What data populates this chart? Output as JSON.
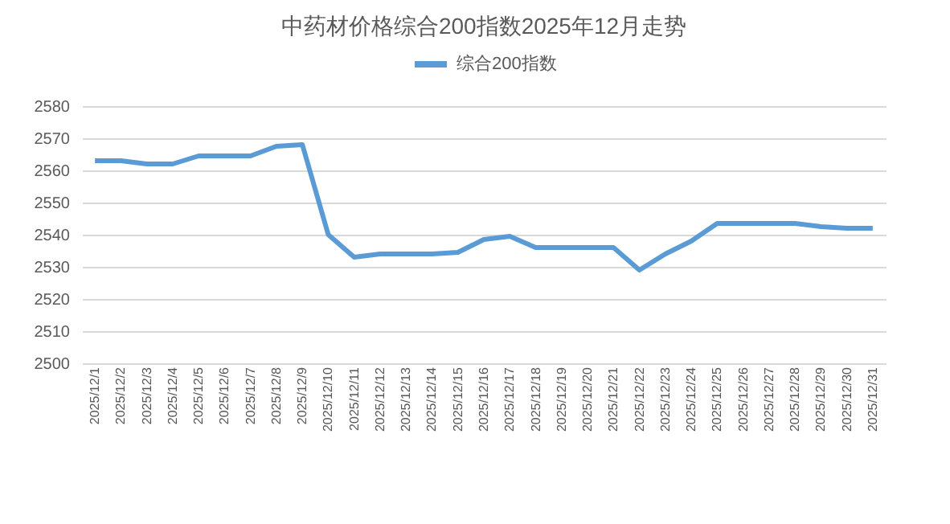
{
  "chart_data": {
    "type": "line",
    "title": "中药材价格综合200指数2025年12月走势",
    "categories": [
      "2025/12/1",
      "2025/12/2",
      "2025/12/3",
      "2025/12/4",
      "2025/12/5",
      "2025/12/6",
      "2025/12/7",
      "2025/12/8",
      "2025/12/9",
      "2025/12/10",
      "2025/12/11",
      "2025/12/12",
      "2025/12/13",
      "2025/12/14",
      "2025/12/15",
      "2025/12/16",
      "2025/12/17",
      "2025/12/18",
      "2025/12/19",
      "2025/12/20",
      "2025/12/21",
      "2025/12/22",
      "2025/12/23",
      "2025/12/24",
      "2025/12/25",
      "2025/12/26",
      "2025/12/27",
      "2025/12/28",
      "2025/12/29",
      "2025/12/30",
      "2025/12/31"
    ],
    "series": [
      {
        "name": "综合200指数",
        "color": "#5b9bd5",
        "values": [
          2563,
          2563,
          2562,
          2562,
          2564.5,
          2564.5,
          2564.5,
          2567.5,
          2568,
          2540,
          2533,
          2534,
          2534,
          2534,
          2534.5,
          2538.5,
          2539.5,
          2536,
          2536,
          2536,
          2536,
          2529,
          2534,
          2538,
          2543.5,
          2543.5,
          2543.5,
          2543.5,
          2542.5,
          2542,
          2542
        ]
      }
    ],
    "ylim": [
      2500,
      2580
    ],
    "yticks": [
      2500,
      2510,
      2520,
      2530,
      2540,
      2550,
      2560,
      2570,
      2580
    ],
    "grid": "y",
    "legend": "top",
    "marker": "none",
    "line_style": "solid"
  }
}
